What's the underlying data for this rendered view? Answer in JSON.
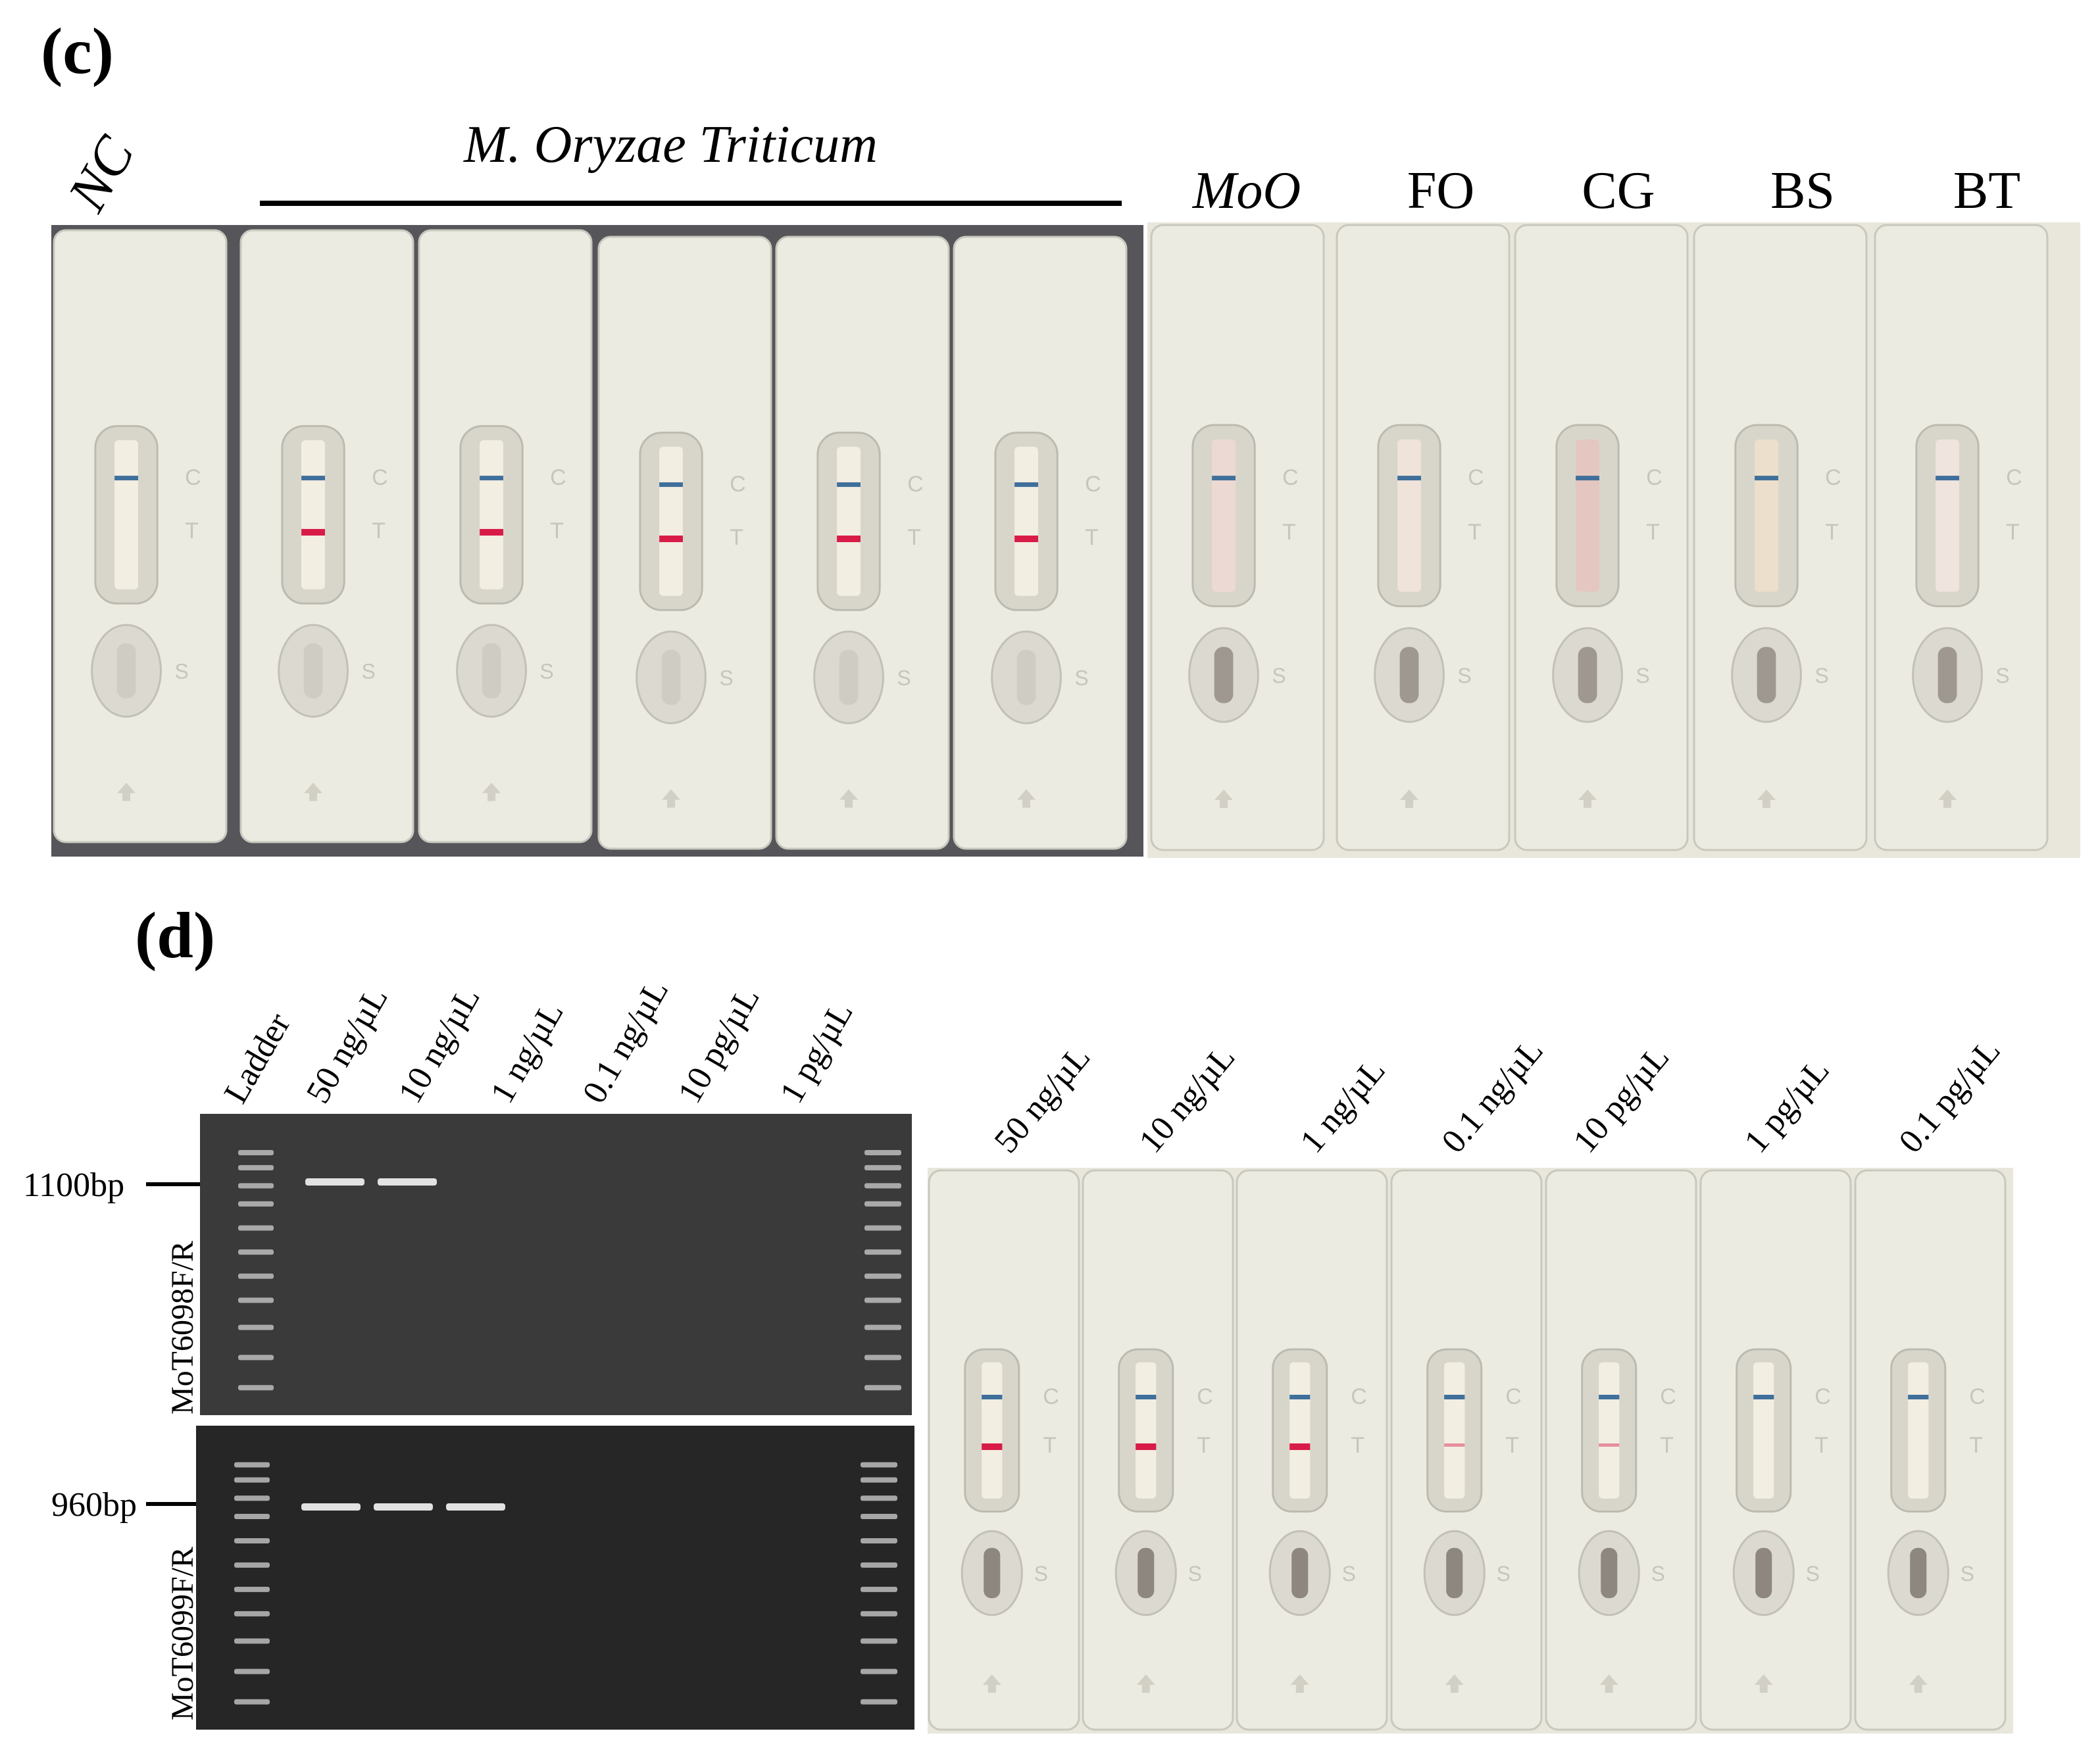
{
  "panel_c": {
    "label": "(c)",
    "group_title": "M. Oryzae Triticum",
    "nc_label": "NC",
    "strip_headers": [
      "MoO",
      "FO",
      "CG",
      "BS",
      "BT"
    ],
    "cassette_letters": {
      "control": "C",
      "test": "T",
      "sample": "S"
    }
  },
  "panel_d": {
    "label": "(d)",
    "gel_lanes": [
      "Ladder",
      "50 ng/µL",
      "10 ng/µL",
      "1 ng/µL",
      "0.1 ng/µL",
      "10 pg/µL",
      "1 pg/µL"
    ],
    "gel_top": {
      "primer": "MoT6098F/R",
      "band": "1100bp"
    },
    "gel_bottom": {
      "primer": "MoT6099F/R",
      "band": "960bp"
    },
    "strip_concentrations": [
      "50 ng/µL",
      "10 ng/µL",
      "1 ng/µL",
      "0.1 ng/µL",
      "10 pg/µL",
      "1 pg/µL",
      "0.1 pg/µL"
    ]
  },
  "colors": {
    "control_line": "#3f6f9a",
    "test_line": "#d81b47",
    "cassette": "#ecebe2",
    "gel_top": "#3a3a3a",
    "gel_bottom": "#262626"
  }
}
